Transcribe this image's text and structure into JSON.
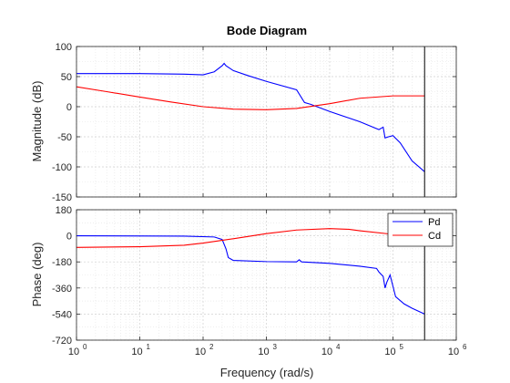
{
  "chart_data": {
    "type": "line",
    "title": "Bode Diagram",
    "xlabel": "Frequency  (rad/s)",
    "xscale": "log",
    "xlim": [
      1,
      1000000
    ],
    "x_tick_labels": [
      "10^0",
      "10^1",
      "10^2",
      "10^3",
      "10^4",
      "10^5",
      "10^6"
    ],
    "x_tick_base": "10",
    "x_tick_exponents": [
      "0",
      "1",
      "2",
      "3",
      "4",
      "5",
      "6"
    ],
    "grid": true,
    "colors": {
      "Pd": "#0000ff",
      "Cd": "#ff0000",
      "vline": "#000000"
    },
    "vertical_line_x": 316000,
    "panels": [
      {
        "name": "magnitude",
        "ylabel": "Magnitude (dB)",
        "ylim": [
          -150,
          100
        ],
        "yticks": [
          100,
          50,
          0,
          -50,
          -100,
          -150
        ],
        "series": [
          {
            "name": "Pd",
            "points": [
              [
                1,
                55
              ],
              [
                10,
                55
              ],
              [
                50,
                54
              ],
              [
                100,
                53
              ],
              [
                150,
                58
              ],
              [
                200,
                68
              ],
              [
                215,
                72
              ],
              [
                230,
                68
              ],
              [
                300,
                60
              ],
              [
                500,
                52
              ],
              [
                1000,
                42
              ],
              [
                3000,
                28
              ],
              [
                4000,
                7
              ],
              [
                5000,
                4
              ],
              [
                10000,
                -8
              ],
              [
                30000,
                -25
              ],
              [
                60000,
                -38
              ],
              [
                70000,
                -34
              ],
              [
                75000,
                -52
              ],
              [
                85000,
                -50
              ],
              [
                100000,
                -48
              ],
              [
                130000,
                -60
              ],
              [
                200000,
                -90
              ],
              [
                316000,
                -108
              ]
            ]
          },
          {
            "name": "Cd",
            "points": [
              [
                1,
                33
              ],
              [
                3,
                25
              ],
              [
                10,
                16
              ],
              [
                30,
                8
              ],
              [
                100,
                0
              ],
              [
                300,
                -4
              ],
              [
                1000,
                -5
              ],
              [
                3000,
                -3
              ],
              [
                10000,
                5
              ],
              [
                30000,
                14
              ],
              [
                100000,
                18
              ],
              [
                316000,
                18
              ]
            ]
          }
        ]
      },
      {
        "name": "phase",
        "ylabel": "Phase (deg)",
        "ylim": [
          -720,
          180
        ],
        "yticks": [
          180,
          0,
          -180,
          -360,
          -540,
          -720
        ],
        "legend": {
          "location": "top-right",
          "entries": [
            "Pd",
            "Cd"
          ]
        },
        "series": [
          {
            "name": "Pd",
            "points": [
              [
                1,
                0
              ],
              [
                50,
                -2
              ],
              [
                150,
                -8
              ],
              [
                200,
                -25
              ],
              [
                230,
                -90
              ],
              [
                250,
                -150
              ],
              [
                300,
                -170
              ],
              [
                1000,
                -178
              ],
              [
                3000,
                -180
              ],
              [
                3300,
                -165
              ],
              [
                3600,
                -180
              ],
              [
                10000,
                -190
              ],
              [
                30000,
                -210
              ],
              [
                55000,
                -225
              ],
              [
                60000,
                -250
              ],
              [
                70000,
                -280
              ],
              [
                75000,
                -360
              ],
              [
                80000,
                -320
              ],
              [
                90000,
                -270
              ],
              [
                110000,
                -420
              ],
              [
                150000,
                -470
              ],
              [
                200000,
                -500
              ],
              [
                316000,
                -540
              ]
            ]
          },
          {
            "name": "Cd",
            "points": [
              [
                1,
                -80
              ],
              [
                10,
                -75
              ],
              [
                50,
                -65
              ],
              [
                100,
                -50
              ],
              [
                300,
                -20
              ],
              [
                1000,
                15
              ],
              [
                3000,
                40
              ],
              [
                10000,
                50
              ],
              [
                20000,
                45
              ],
              [
                30000,
                35
              ],
              [
                100000,
                10
              ],
              [
                316000,
                5
              ]
            ]
          }
        ]
      }
    ]
  }
}
